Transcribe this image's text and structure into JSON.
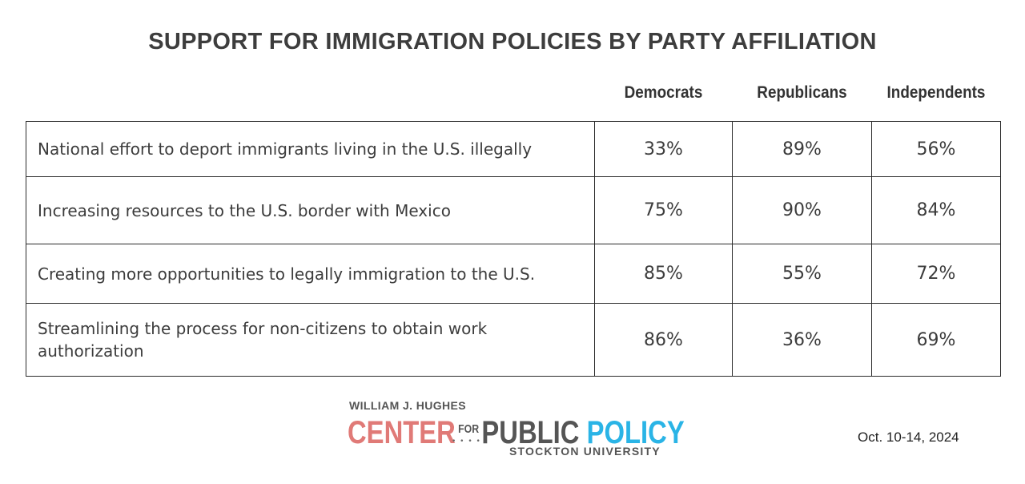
{
  "chart_data": {
    "type": "table",
    "title": "SUPPORT FOR IMMIGRATION POLICIES BY PARTY AFFILIATION",
    "columns": [
      "Democrats",
      "Republicans",
      "Independents"
    ],
    "rows": [
      {
        "label": "National effort to deport immigrants living in the U.S. illegally",
        "values": [
          "33%",
          "89%",
          "56%"
        ]
      },
      {
        "label": "Increasing resources to the U.S. border with Mexico",
        "values": [
          "75%",
          "90%",
          "84%"
        ]
      },
      {
        "label": "Creating more opportunities to legally immigration to the U.S.",
        "values": [
          "85%",
          "55%",
          "72%"
        ]
      },
      {
        "label": "Streamlining the process for non-citizens to obtain work authorization",
        "values": [
          "86%",
          "36%",
          "69%"
        ]
      }
    ]
  },
  "logo": {
    "line1": "WILLIAM J. HUGHES",
    "center": "CENTER",
    "for": "FOR",
    "public": "PUBLIC",
    "policy": "POLICY",
    "line3": "STOCKTON UNIVERSITY",
    "colors": {
      "center": "#e07a77",
      "policy": "#2ab4e6",
      "gray": "#555555"
    }
  },
  "date": "Oct. 10-14, 2024"
}
